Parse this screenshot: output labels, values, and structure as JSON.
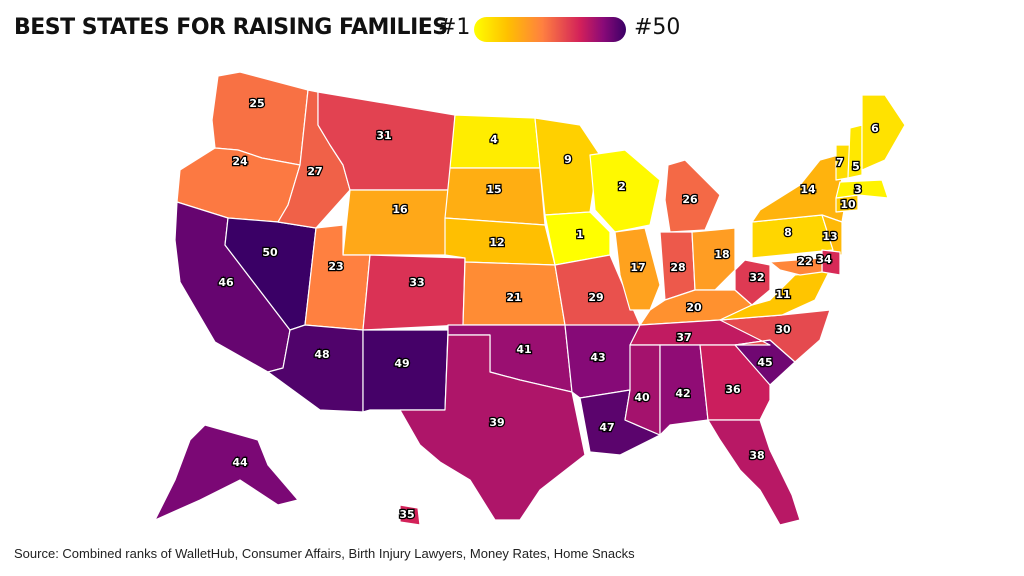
{
  "title": "BEST STATES FOR RAISING FAMILIES",
  "legend": {
    "min_label": "#1",
    "max_label": "#50",
    "min_color": "#ffff00",
    "max_color": "#3a0066"
  },
  "source": "Source: Combined ranks of WalletHub, Consumer Affairs, Birth Injury Lawyers, Money Rates, Home Snacks",
  "states": [
    {
      "state": "WA",
      "rank": "25"
    },
    {
      "state": "OR",
      "rank": "24"
    },
    {
      "state": "CA",
      "rank": "46"
    },
    {
      "state": "NV",
      "rank": "50"
    },
    {
      "state": "ID",
      "rank": "27"
    },
    {
      "state": "MT",
      "rank": "31"
    },
    {
      "state": "WY",
      "rank": "16"
    },
    {
      "state": "UT",
      "rank": "23"
    },
    {
      "state": "AZ",
      "rank": "48"
    },
    {
      "state": "CO",
      "rank": "33"
    },
    {
      "state": "NM",
      "rank": "49"
    },
    {
      "state": "ND",
      "rank": "4"
    },
    {
      "state": "SD",
      "rank": "15"
    },
    {
      "state": "NE",
      "rank": "12"
    },
    {
      "state": "KS",
      "rank": "21"
    },
    {
      "state": "OK",
      "rank": "41"
    },
    {
      "state": "TX",
      "rank": "39"
    },
    {
      "state": "MN",
      "rank": "9"
    },
    {
      "state": "IA",
      "rank": "1"
    },
    {
      "state": "MO",
      "rank": "29"
    },
    {
      "state": "AR",
      "rank": "43"
    },
    {
      "state": "LA",
      "rank": "47"
    },
    {
      "state": "WI",
      "rank": "2"
    },
    {
      "state": "IL",
      "rank": "17"
    },
    {
      "state": "MI",
      "rank": "26"
    },
    {
      "state": "IN",
      "rank": "28"
    },
    {
      "state": "OH",
      "rank": "18"
    },
    {
      "state": "KY",
      "rank": "20"
    },
    {
      "state": "TN",
      "rank": "37"
    },
    {
      "state": "MS",
      "rank": "40"
    },
    {
      "state": "AL",
      "rank": "42"
    },
    {
      "state": "GA",
      "rank": "36"
    },
    {
      "state": "FL",
      "rank": "38"
    },
    {
      "state": "SC",
      "rank": "45"
    },
    {
      "state": "NC",
      "rank": "30"
    },
    {
      "state": "VA",
      "rank": "11"
    },
    {
      "state": "WV",
      "rank": "32"
    },
    {
      "state": "PA",
      "rank": "8"
    },
    {
      "state": "NY",
      "rank": "14"
    },
    {
      "state": "NJ",
      "rank": "13"
    },
    {
      "state": "DE",
      "rank": "34"
    },
    {
      "state": "MD",
      "rank": "22"
    },
    {
      "state": "CT",
      "rank": "10"
    },
    {
      "state": "MA",
      "rank": "3"
    },
    {
      "state": "VT",
      "rank": "7"
    },
    {
      "state": "NH",
      "rank": "5"
    },
    {
      "state": "ME",
      "rank": "6"
    },
    {
      "state": "AK",
      "rank": "44"
    },
    {
      "state": "HI",
      "rank": "35"
    }
  ]
}
